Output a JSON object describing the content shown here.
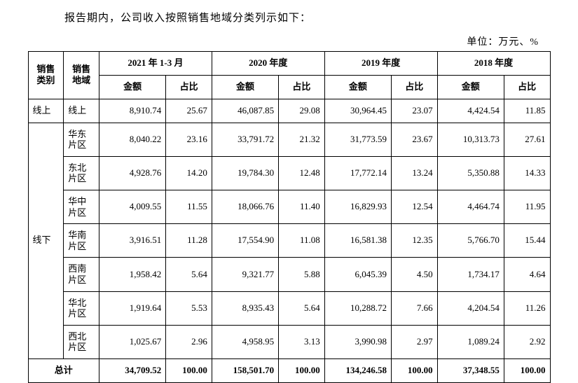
{
  "intro": "报告期内，公司收入按照销售地域分类列示如下：",
  "unit": "单位：万元、%",
  "header": {
    "sales_category": "销售\n类别",
    "sales_region": "销售\n地域",
    "periods": [
      "2021 年 1-3 月",
      "2020 年度",
      "2019 年度",
      "2018 年度"
    ],
    "amount": "金额",
    "percent": "占比"
  },
  "online_label": "线上",
  "offline_label": "线下",
  "online_row": {
    "region": "线上",
    "values": [
      "8,910.74",
      "25.67",
      "46,087.85",
      "29.08",
      "30,964.45",
      "23.07",
      "4,424.54",
      "11.85"
    ]
  },
  "offline_rows": [
    {
      "region": "华东\n片区",
      "values": [
        "8,040.22",
        "23.16",
        "33,791.72",
        "21.32",
        "31,773.59",
        "23.67",
        "10,313.73",
        "27.61"
      ]
    },
    {
      "region": "东北\n片区",
      "values": [
        "4,928.76",
        "14.20",
        "19,784.30",
        "12.48",
        "17,772.14",
        "13.24",
        "5,350.88",
        "14.33"
      ]
    },
    {
      "region": "华中\n片区",
      "values": [
        "4,009.55",
        "11.55",
        "18,066.76",
        "11.40",
        "16,829.93",
        "12.54",
        "4,464.74",
        "11.95"
      ]
    },
    {
      "region": "华南\n片区",
      "values": [
        "3,916.51",
        "11.28",
        "17,554.90",
        "11.08",
        "16,581.38",
        "12.35",
        "5,766.70",
        "15.44"
      ]
    },
    {
      "region": "西南\n片区",
      "values": [
        "1,958.42",
        "5.64",
        "9,321.77",
        "5.88",
        "6,045.39",
        "4.50",
        "1,734.17",
        "4.64"
      ]
    },
    {
      "region": "华北\n片区",
      "values": [
        "1,919.64",
        "5.53",
        "8,935.43",
        "5.64",
        "10,288.72",
        "7.66",
        "4,204.54",
        "11.26"
      ]
    },
    {
      "region": "西北\n片区",
      "values": [
        "1,025.67",
        "2.96",
        "4,958.95",
        "3.13",
        "3,990.98",
        "2.97",
        "1,089.24",
        "2.92"
      ]
    }
  ],
  "total": {
    "label": "总计",
    "values": [
      "34,709.52",
      "100.00",
      "158,501.70",
      "100.00",
      "134,246.58",
      "100.00",
      "37,348.55",
      "100.00"
    ]
  },
  "table_style": {
    "border_color": "#000000",
    "background_color": "#ffffff",
    "font_family": "SimSun",
    "cell_font_size": 13,
    "header_font_weight": "bold",
    "number_align": "right"
  }
}
